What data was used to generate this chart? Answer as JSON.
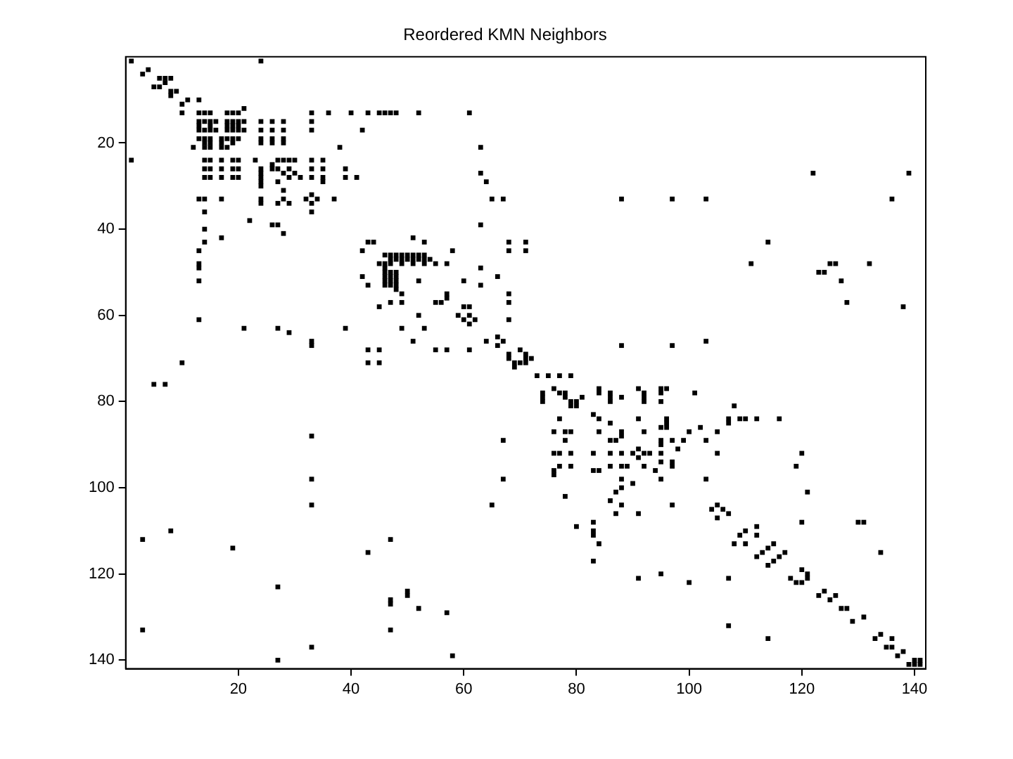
{
  "chart_data": {
    "type": "scatter",
    "title": "Reordered KMN Neighbors",
    "xlim": [
      0,
      142
    ],
    "ylim": [
      142,
      0
    ],
    "xticks": [
      20,
      40,
      60,
      80,
      100,
      120,
      140
    ],
    "yticks": [
      20,
      40,
      60,
      80,
      100,
      120,
      140
    ],
    "grid": false,
    "legend": false,
    "marker": "square",
    "series": [
      {
        "color": "#000000",
        "x": [
          1,
          24,
          3,
          4,
          6,
          7,
          8,
          5,
          6,
          7,
          8,
          8,
          9,
          10,
          11,
          13,
          10,
          21,
          13,
          14,
          15,
          18,
          19,
          20,
          33,
          36,
          40,
          43,
          45,
          47,
          46,
          48,
          52,
          61,
          13,
          14,
          15,
          16,
          18,
          19,
          20,
          21,
          24,
          26,
          28,
          33,
          13,
          15,
          18,
          19,
          20,
          13,
          14,
          15,
          16,
          18,
          19,
          20,
          21,
          24,
          26,
          28,
          33,
          42,
          13,
          14,
          15,
          17,
          18,
          19,
          20,
          24,
          26,
          28,
          14,
          15,
          17,
          19,
          24,
          26,
          28,
          12,
          14,
          15,
          17,
          18,
          38,
          63,
          1,
          14,
          15,
          17,
          19,
          20,
          23,
          27,
          28,
          29,
          30,
          33,
          35,
          14,
          15,
          17,
          19,
          20,
          24,
          26,
          27,
          29,
          33,
          35,
          39,
          24,
          28,
          30,
          63,
          122,
          139,
          14,
          15,
          17,
          19,
          20,
          24,
          29,
          31,
          33,
          35,
          39,
          41,
          24,
          27,
          35,
          64,
          13,
          14,
          17,
          24,
          28,
          32,
          34,
          37,
          65,
          67,
          88,
          97,
          103,
          136,
          24,
          27,
          29,
          33,
          26,
          24,
          28,
          33,
          14,
          33,
          22,
          26,
          27,
          63,
          14,
          28,
          17,
          51,
          14,
          43,
          44,
          53,
          68,
          71,
          114,
          13,
          42,
          58,
          68,
          71,
          46,
          47,
          48,
          49,
          50,
          51,
          52,
          53,
          47,
          48,
          49,
          50,
          51,
          52,
          53,
          54,
          13,
          45,
          46,
          47,
          49,
          51,
          53,
          55,
          57,
          111,
          125,
          126,
          132,
          13,
          46,
          63,
          46,
          47,
          48,
          123,
          124,
          42,
          46,
          47,
          48,
          66,
          13,
          46,
          47,
          48,
          52,
          60,
          127,
          43,
          46,
          47,
          48,
          63,
          48,
          49,
          57,
          68,
          57,
          47,
          49,
          55,
          56,
          68,
          128,
          45,
          60,
          61,
          138,
          59,
          61,
          52,
          60,
          62,
          68,
          13,
          61,
          21,
          27,
          39,
          49,
          53,
          29,
          66,
          33,
          51,
          64,
          67,
          103,
          33,
          66,
          88,
          97,
          43,
          45,
          55,
          57,
          61,
          70,
          68,
          71,
          68,
          72,
          71,
          10,
          43,
          45,
          69,
          71,
          70,
          69,
          73,
          75,
          77,
          79,
          5,
          7,
          76,
          84,
          91,
          95,
          96,
          74,
          77,
          78,
          84,
          86,
          92,
          95,
          101,
          74,
          78,
          81,
          86,
          88,
          92,
          74,
          79,
          80,
          86,
          92,
          95,
          79,
          80,
          108,
          83,
          77,
          84,
          91,
          96,
          107,
          109,
          110,
          112,
          116,
          86,
          96,
          107,
          95,
          96,
          102,
          76,
          78,
          79,
          84,
          88,
          92,
          100,
          105,
          33,
          88,
          67,
          78,
          86,
          87,
          95,
          97,
          99,
          103,
          95,
          91,
          98,
          76,
          77,
          79,
          83,
          86,
          88,
          90,
          92,
          93,
          95,
          105,
          120,
          91,
          95,
          97,
          77,
          79,
          86,
          88,
          89,
          92,
          97,
          119,
          76,
          83,
          84,
          94,
          76,
          33,
          67,
          88,
          95,
          103,
          90,
          88,
          87,
          121,
          78,
          86,
          33,
          65,
          88,
          97,
          105,
          104,
          106,
          87,
          91,
          107,
          105,
          83,
          120,
          130,
          131,
          80,
          112,
          8,
          83,
          110,
          3,
          47,
          83,
          109,
          112,
          84,
          108,
          110,
          115,
          19,
          114,
          43,
          113,
          117,
          134,
          112,
          116,
          83,
          115,
          114,
          120,
          95,
          121,
          91,
          107,
          118,
          121,
          100,
          119,
          120,
          27,
          50,
          124,
          50,
          123,
          126,
          47,
          125,
          47,
          52,
          127,
          128,
          57,
          131,
          129,
          107,
          3,
          47,
          134,
          114,
          133,
          136,
          33,
          135,
          136,
          138,
          58,
          137,
          27,
          140,
          141,
          139,
          140,
          141
        ],
        "values": [
          1,
          1,
          4,
          3,
          5,
          5,
          5,
          7,
          7,
          6,
          8,
          9,
          8,
          11,
          10,
          10,
          13,
          12,
          13,
          13,
          13,
          13,
          13,
          13,
          13,
          13,
          13,
          13,
          13,
          13,
          13,
          13,
          13,
          13,
          15,
          15,
          15,
          15,
          15,
          15,
          15,
          15,
          15,
          15,
          15,
          15,
          16,
          16,
          16,
          16,
          16,
          17,
          17,
          17,
          17,
          17,
          17,
          17,
          17,
          17,
          17,
          17,
          17,
          17,
          19,
          19,
          19,
          19,
          19,
          19,
          19,
          19,
          19,
          19,
          20,
          20,
          20,
          20,
          20,
          20,
          20,
          21,
          21,
          21,
          21,
          21,
          21,
          21,
          24,
          24,
          24,
          24,
          24,
          24,
          24,
          24,
          24,
          24,
          24,
          24,
          24,
          26,
          26,
          26,
          26,
          26,
          26,
          26,
          26,
          26,
          26,
          26,
          26,
          27,
          27,
          27,
          27,
          27,
          27,
          28,
          28,
          28,
          28,
          28,
          28,
          28,
          28,
          28,
          28,
          28,
          28,
          29,
          29,
          29,
          29,
          33,
          33,
          33,
          33,
          33,
          33,
          33,
          33,
          33,
          33,
          33,
          33,
          33,
          33,
          34,
          34,
          34,
          34,
          25,
          30,
          31,
          32,
          36,
          36,
          38,
          39,
          39,
          39,
          40,
          41,
          42,
          42,
          43,
          43,
          43,
          43,
          43,
          43,
          43,
          45,
          45,
          45,
          45,
          45,
          46,
          46,
          46,
          46,
          46,
          46,
          46,
          46,
          47,
          47,
          47,
          47,
          47,
          47,
          47,
          47,
          48,
          48,
          48,
          48,
          48,
          48,
          48,
          48,
          48,
          48,
          48,
          48,
          48,
          49,
          49,
          49,
          50,
          50,
          50,
          50,
          50,
          51,
          51,
          51,
          51,
          51,
          52,
          52,
          52,
          52,
          52,
          52,
          52,
          53,
          53,
          53,
          53,
          53,
          54,
          55,
          55,
          55,
          56,
          57,
          57,
          57,
          57,
          57,
          57,
          58,
          58,
          58,
          58,
          60,
          60,
          60,
          61,
          61,
          61,
          61,
          62,
          63,
          63,
          63,
          63,
          63,
          64,
          65,
          66,
          66,
          66,
          66,
          66,
          67,
          67,
          67,
          67,
          68,
          68,
          68,
          68,
          68,
          68,
          69,
          69,
          70,
          70,
          70,
          71,
          71,
          71,
          71,
          71,
          71,
          72,
          74,
          74,
          74,
          74,
          76,
          76,
          77,
          77,
          77,
          77,
          77,
          78,
          78,
          78,
          78,
          78,
          78,
          78,
          78,
          79,
          79,
          79,
          79,
          79,
          79,
          80,
          80,
          80,
          80,
          80,
          80,
          81,
          81,
          81,
          83,
          84,
          84,
          84,
          84,
          84,
          84,
          84,
          84,
          84,
          85,
          85,
          85,
          86,
          86,
          86,
          87,
          87,
          87,
          87,
          87,
          87,
          87,
          87,
          88,
          88,
          89,
          89,
          89,
          89,
          89,
          89,
          89,
          89,
          90,
          91,
          91,
          92,
          92,
          92,
          92,
          92,
          92,
          92,
          92,
          92,
          92,
          92,
          92,
          93,
          94,
          94,
          95,
          95,
          95,
          95,
          95,
          95,
          95,
          95,
          96,
          96,
          96,
          96,
          97,
          98,
          98,
          98,
          98,
          98,
          99,
          100,
          101,
          101,
          102,
          103,
          104,
          104,
          104,
          104,
          104,
          105,
          105,
          106,
          106,
          106,
          107,
          108,
          108,
          108,
          108,
          109,
          109,
          110,
          110,
          110,
          112,
          112,
          111,
          111,
          111,
          113,
          113,
          113,
          113,
          114,
          114,
          115,
          115,
          115,
          115,
          116,
          116,
          117,
          117,
          118,
          119,
          120,
          120,
          121,
          121,
          121,
          121,
          122,
          122,
          122,
          123,
          124,
          124,
          125,
          125,
          125,
          126,
          126,
          127,
          128,
          128,
          128,
          129,
          130,
          131,
          132,
          133,
          133,
          134,
          135,
          135,
          135,
          137,
          137,
          137,
          138,
          139,
          139,
          140,
          140,
          140,
          141,
          141,
          141
        ]
      }
    ]
  }
}
